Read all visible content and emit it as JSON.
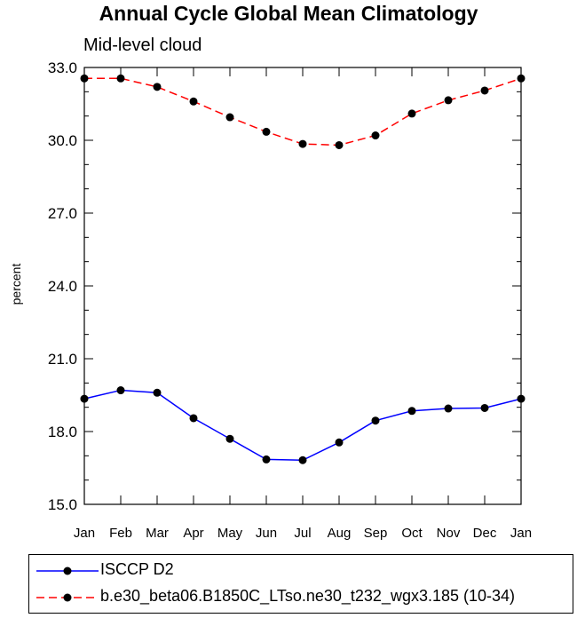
{
  "chart_data": {
    "type": "line",
    "title": "Annual Cycle Global Mean Climatology",
    "subtitle": "Mid-level cloud",
    "xlabel": "",
    "ylabel": "percent",
    "categories": [
      "Jan",
      "Feb",
      "Mar",
      "Apr",
      "May",
      "Jun",
      "Jul",
      "Aug",
      "Sep",
      "Oct",
      "Nov",
      "Dec",
      "Jan"
    ],
    "ylim": [
      15.0,
      33.0
    ],
    "yticks": [
      "15.0",
      "18.0",
      "21.0",
      "24.0",
      "27.0",
      "30.0",
      "33.0"
    ],
    "grid": false,
    "legend_position": "bottom",
    "series": [
      {
        "name": "ISCCP D2",
        "color": "#0000ff",
        "line_style": "solid",
        "marker": "circle",
        "values": [
          19.35,
          19.7,
          19.6,
          18.55,
          17.7,
          16.85,
          16.82,
          17.55,
          18.45,
          18.85,
          18.95,
          18.97,
          19.35
        ]
      },
      {
        "name": "b.e30_beta06.B1850C_LTso.ne30_t232_wgx3.185 (10-34)",
        "color": "#ff0000",
        "line_style": "dashed",
        "marker": "circle",
        "values": [
          32.55,
          32.55,
          32.2,
          31.6,
          30.95,
          30.35,
          29.85,
          29.8,
          30.2,
          31.1,
          31.65,
          32.05,
          32.55
        ]
      }
    ]
  }
}
